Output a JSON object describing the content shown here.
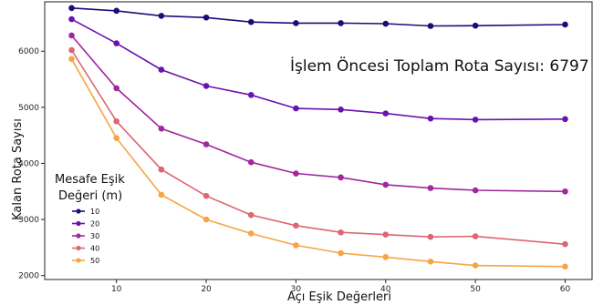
{
  "chart_data": {
    "type": "line",
    "title": "",
    "xlabel": "Açı Eşik Değerleri",
    "ylabel": "Kalan Rota Sayısı",
    "annotation": "İşlem Öncesi Toplam Rota Sayısı: 6797",
    "legend_title_lines": [
      "Mesafe Eşik",
      "Değeri (m)"
    ],
    "legend_position": "lower-left",
    "grid": false,
    "xlim": [
      2,
      63
    ],
    "ylim": [
      1930,
      6880
    ],
    "x_ticks": [
      10,
      20,
      30,
      40,
      50,
      60
    ],
    "y_ticks": [
      2000,
      3000,
      4000,
      5000,
      6000
    ],
    "x": [
      5,
      10,
      15,
      20,
      25,
      30,
      35,
      40,
      45,
      50,
      60
    ],
    "series": [
      {
        "name": "10",
        "color": "#1a0d7a",
        "values": [
          6770,
          6720,
          6630,
          6600,
          6520,
          6500,
          6500,
          6490,
          6450,
          6455,
          6475
        ]
      },
      {
        "name": "20",
        "color": "#6a12ad",
        "values": [
          6570,
          6140,
          5670,
          5380,
          5220,
          4980,
          4960,
          4890,
          4800,
          4780,
          4790
        ]
      },
      {
        "name": "30",
        "color": "#a0279d",
        "values": [
          6280,
          5340,
          4620,
          4340,
          4020,
          3820,
          3750,
          3620,
          3560,
          3520,
          3500
        ]
      },
      {
        "name": "40",
        "color": "#dd6673",
        "values": [
          6020,
          4750,
          3890,
          3420,
          3080,
          2890,
          2770,
          2730,
          2690,
          2700,
          2560
        ]
      },
      {
        "name": "50",
        "color": "#f6a544",
        "values": [
          5860,
          4450,
          3440,
          3000,
          2750,
          2540,
          2400,
          2330,
          2250,
          2180,
          2160
        ]
      }
    ]
  }
}
